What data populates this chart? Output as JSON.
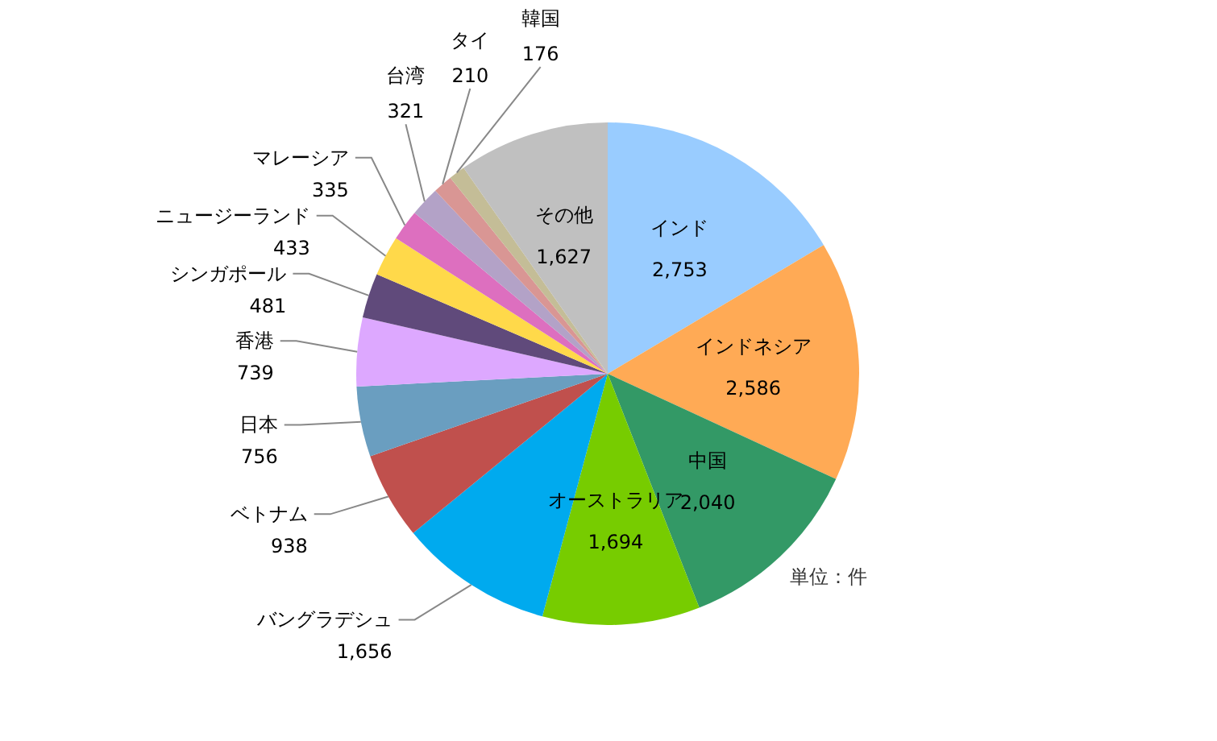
{
  "chart_data": {
    "type": "pie",
    "categories": [
      "インド",
      "インドネシア",
      "中国",
      "オーストラリア",
      "バングラデシュ",
      "ベトナム",
      "日本",
      "香港",
      "シンガポール",
      "ニュージーランド",
      "マレーシア",
      "台湾",
      "タイ",
      "韓国",
      "その他"
    ],
    "values": [
      2753,
      2586,
      2040,
      1694,
      1656,
      938,
      756,
      739,
      481,
      433,
      335,
      321,
      210,
      176,
      1627
    ],
    "value_labels": [
      "2,753",
      "2,586",
      "2,040",
      "1,694",
      "1,656",
      "938",
      "756",
      "739",
      "481",
      "433",
      "335",
      "321",
      "210",
      "176",
      "1,627"
    ],
    "colors": [
      "#99ccff",
      "#ffaa55",
      "#339966",
      "#77cc00",
      "#00aaee",
      "#c0504d",
      "#6a9ec0",
      "#dda8ff",
      "#604a7b",
      "#ffd94a",
      "#dd6fbf",
      "#b3a2c7",
      "#d99694",
      "#c4bd97",
      "#c0c0c0"
    ],
    "annotations": [
      "単位：件"
    ]
  }
}
